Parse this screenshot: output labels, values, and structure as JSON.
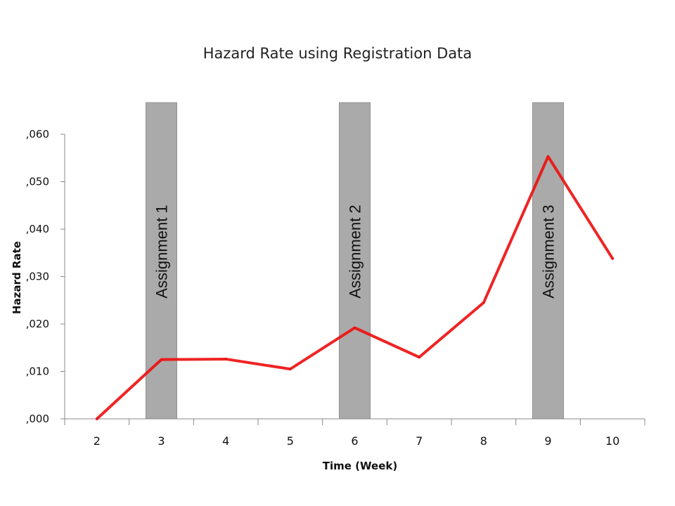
{
  "chart_data": {
    "type": "line",
    "title": "Hazard Rate using Registration Data",
    "xlabel": "Time (Week)",
    "ylabel": "Hazard Rate",
    "categories": [
      "2",
      "3",
      "4",
      "5",
      "6",
      "7",
      "8",
      "9",
      "10"
    ],
    "y_tick_labels": [
      ",000",
      ",010",
      ",020",
      ",030",
      ",040",
      ",050",
      ",060"
    ],
    "ylim": [
      0,
      0.06
    ],
    "grid": false,
    "series": [
      {
        "values": [
          0.0,
          0.0125,
          0.0126,
          0.0105,
          0.0192,
          0.013,
          0.0245,
          0.0553,
          0.0338
        ],
        "color": "#ee1111"
      }
    ],
    "annotations": [
      {
        "label": "Assignment 1",
        "category": "3"
      },
      {
        "label": "Assignment 2",
        "category": "6"
      },
      {
        "label": "Assignment 3",
        "category": "9"
      }
    ],
    "band_color": "#a6a6a6"
  }
}
